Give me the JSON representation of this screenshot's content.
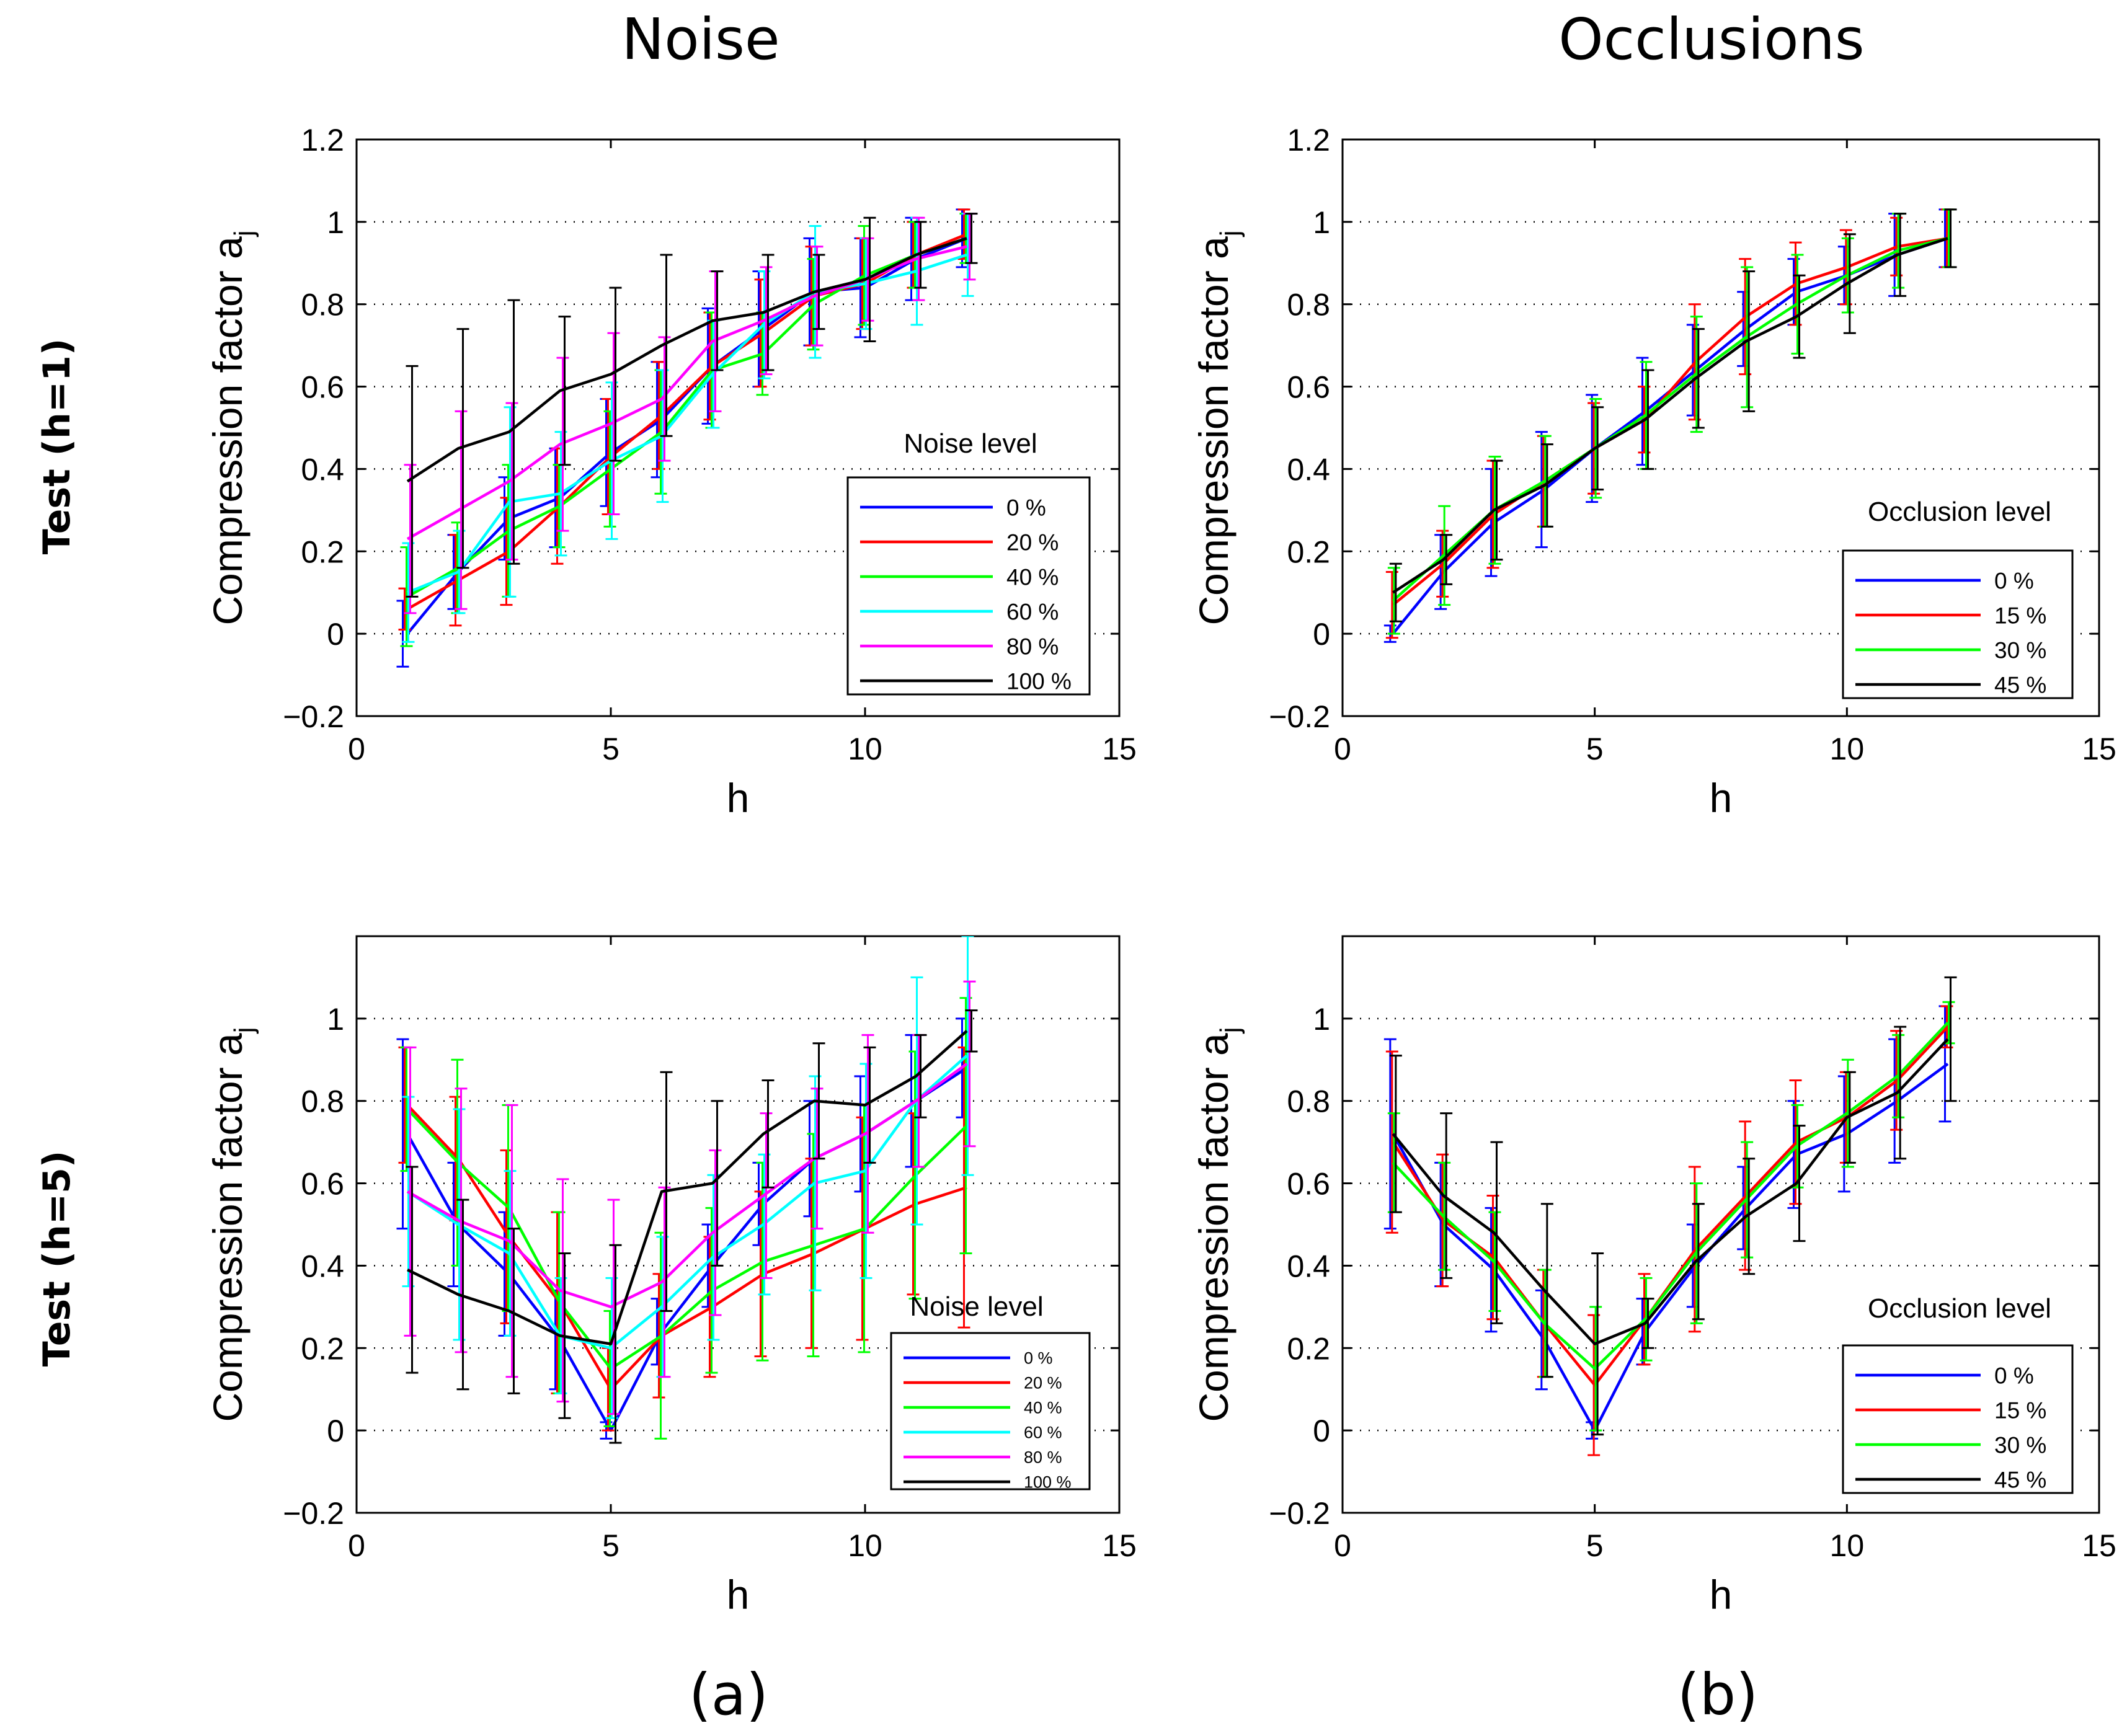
{
  "figure": {
    "column_titles": [
      "Noise",
      "Occlusions"
    ],
    "row_labels": [
      "Test (h=1)",
      "Test (h=5)"
    ],
    "panel_labels": [
      "(a)",
      "(b)"
    ],
    "colors": {
      "blue": "#0000ff",
      "red": "#ff0000",
      "green": "#00ff00",
      "cyan": "#00ffff",
      "magenta": "#ff00ff",
      "black": "#000000",
      "grid": "#000000"
    }
  },
  "chart_data": [
    {
      "id": "p11",
      "type": "line",
      "subtitle": "Noise",
      "row_label": "Test (h=1)",
      "xlabel": "h",
      "ylabel_main": "Compression factor a",
      "ylabel_sub": "j",
      "xlim": [
        0,
        15
      ],
      "ylim": [
        -0.2,
        1.2
      ],
      "xticks": [
        0,
        5,
        10,
        15
      ],
      "yticks": [
        -0.2,
        0,
        0.2,
        0.4,
        0.6,
        0.8,
        1,
        1.2
      ],
      "ytick_labels": [
        "−0.2",
        "0",
        "0.2",
        "0.4",
        "0.6",
        "0.8",
        "1",
        "1.2"
      ],
      "grid": "horizontal dotted",
      "legend": {
        "title": "Noise level",
        "placement": "lower-right"
      },
      "x": [
        1,
        2,
        3,
        4,
        5,
        6,
        7,
        8,
        9,
        10,
        11,
        12
      ],
      "series": [
        {
          "name": "0 %",
          "color": "blue",
          "values": [
            0.0,
            0.15,
            0.28,
            0.33,
            0.44,
            0.52,
            0.65,
            0.74,
            0.83,
            0.84,
            0.91,
            0.96
          ],
          "err": [
            0.08,
            0.09,
            0.1,
            0.12,
            0.13,
            0.14,
            0.14,
            0.14,
            0.13,
            0.12,
            0.1,
            0.07
          ]
        },
        {
          "name": "20 %",
          "color": "red",
          "values": [
            0.06,
            0.13,
            0.2,
            0.31,
            0.43,
            0.53,
            0.65,
            0.73,
            0.82,
            0.85,
            0.92,
            0.97
          ],
          "err": [
            0.05,
            0.11,
            0.13,
            0.14,
            0.14,
            0.13,
            0.13,
            0.13,
            0.12,
            0.11,
            0.08,
            0.06
          ]
        },
        {
          "name": "40 %",
          "color": "green",
          "values": [
            0.09,
            0.16,
            0.25,
            0.31,
            0.4,
            0.49,
            0.64,
            0.68,
            0.8,
            0.87,
            0.92,
            0.96
          ],
          "err": [
            0.12,
            0.11,
            0.16,
            0.1,
            0.14,
            0.15,
            0.14,
            0.1,
            0.11,
            0.12,
            0.08,
            0.06
          ]
        },
        {
          "name": "60 %",
          "color": "cyan",
          "values": [
            0.1,
            0.15,
            0.32,
            0.34,
            0.42,
            0.48,
            0.63,
            0.75,
            0.83,
            0.85,
            0.88,
            0.92
          ],
          "err": [
            0.12,
            0.1,
            0.23,
            0.15,
            0.19,
            0.16,
            0.13,
            0.13,
            0.16,
            0.11,
            0.13,
            0.1
          ]
        },
        {
          "name": "80 %",
          "color": "magenta",
          "values": [
            0.23,
            0.3,
            0.37,
            0.46,
            0.51,
            0.57,
            0.71,
            0.76,
            0.82,
            0.86,
            0.91,
            0.94
          ],
          "err": [
            0.18,
            0.24,
            0.19,
            0.21,
            0.22,
            0.15,
            0.17,
            0.13,
            0.12,
            0.1,
            0.1,
            0.08
          ]
        },
        {
          "name": "100 %",
          "color": "black",
          "values": [
            0.37,
            0.45,
            0.49,
            0.59,
            0.63,
            0.7,
            0.76,
            0.78,
            0.83,
            0.86,
            0.92,
            0.96
          ],
          "err": [
            0.28,
            0.29,
            0.32,
            0.18,
            0.21,
            0.22,
            0.12,
            0.14,
            0.09,
            0.15,
            0.08,
            0.06
          ]
        }
      ]
    },
    {
      "id": "p12",
      "type": "line",
      "subtitle": "Occlusions",
      "row_label": "Test (h=1)",
      "xlabel": "h",
      "ylabel_main": "Compression factor a",
      "ylabel_sub": "j",
      "xlim": [
        0,
        15
      ],
      "ylim": [
        -0.2,
        1.2
      ],
      "xticks": [
        0,
        5,
        10,
        15
      ],
      "yticks": [
        -0.2,
        0,
        0.2,
        0.4,
        0.6,
        0.8,
        1,
        1.2
      ],
      "ytick_labels": [
        "−0.2",
        "0",
        "0.2",
        "0.4",
        "0.6",
        "0.8",
        "1",
        "1.2"
      ],
      "grid": "horizontal dotted",
      "legend": {
        "title": "Occlusion level",
        "placement": "lower-right"
      },
      "x": [
        1,
        2,
        3,
        4,
        5,
        6,
        7,
        8,
        9,
        10,
        11,
        12
      ],
      "series": [
        {
          "name": "0 %",
          "color": "blue",
          "values": [
            0.0,
            0.15,
            0.27,
            0.35,
            0.45,
            0.54,
            0.64,
            0.74,
            0.83,
            0.87,
            0.92,
            0.96
          ],
          "err": [
            0.02,
            0.09,
            0.13,
            0.14,
            0.13,
            0.13,
            0.11,
            0.09,
            0.08,
            0.07,
            0.1,
            0.07
          ]
        },
        {
          "name": "15 %",
          "color": "red",
          "values": [
            0.07,
            0.17,
            0.29,
            0.37,
            0.45,
            0.52,
            0.66,
            0.77,
            0.85,
            0.89,
            0.94,
            0.96
          ],
          "err": [
            0.08,
            0.08,
            0.13,
            0.11,
            0.11,
            0.08,
            0.14,
            0.14,
            0.1,
            0.09,
            0.07,
            0.07
          ]
        },
        {
          "name": "30 %",
          "color": "green",
          "values": [
            0.08,
            0.19,
            0.3,
            0.37,
            0.45,
            0.53,
            0.63,
            0.72,
            0.8,
            0.87,
            0.93,
            0.96
          ],
          "err": [
            0.08,
            0.12,
            0.13,
            0.11,
            0.12,
            0.13,
            0.14,
            0.17,
            0.12,
            0.09,
            0.09,
            0.07
          ]
        },
        {
          "name": "45 %",
          "color": "black",
          "values": [
            0.1,
            0.18,
            0.3,
            0.36,
            0.45,
            0.52,
            0.62,
            0.71,
            0.77,
            0.85,
            0.92,
            0.96
          ],
          "err": [
            0.07,
            0.06,
            0.12,
            0.1,
            0.1,
            0.12,
            0.12,
            0.17,
            0.1,
            0.12,
            0.1,
            0.07
          ]
        }
      ]
    },
    {
      "id": "p21",
      "type": "line",
      "subtitle": "Noise",
      "row_label": "Test (h=5)",
      "xlabel": "h",
      "ylabel_main": "Compression factor a",
      "ylabel_sub": "j",
      "xlim": [
        0,
        15
      ],
      "ylim": [
        -0.2,
        1.2
      ],
      "xticks": [
        0,
        5,
        10,
        15
      ],
      "yticks": [
        -0.2,
        0,
        0.2,
        0.4,
        0.6,
        0.8,
        1
      ],
      "ytick_labels": [
        "−0.2",
        "0",
        "0.2",
        "0.4",
        "0.6",
        "0.8",
        "1"
      ],
      "grid": "horizontal dotted",
      "legend": {
        "title": "Noise level",
        "placement": "lower-right"
      },
      "x": [
        1,
        2,
        3,
        4,
        5,
        6,
        7,
        8,
        9,
        10,
        11,
        12
      ],
      "series": [
        {
          "name": "0 %",
          "color": "blue",
          "values": [
            0.72,
            0.5,
            0.38,
            0.22,
            0.0,
            0.24,
            0.4,
            0.55,
            0.66,
            0.72,
            0.8,
            0.88
          ],
          "err": [
            0.23,
            0.15,
            0.15,
            0.12,
            0.02,
            0.08,
            0.1,
            0.1,
            0.14,
            0.14,
            0.16,
            0.12
          ]
        },
        {
          "name": "20 %",
          "color": "red",
          "values": [
            0.79,
            0.66,
            0.47,
            0.31,
            0.1,
            0.23,
            0.3,
            0.38,
            0.43,
            0.49,
            0.55,
            0.59
          ],
          "err": [
            0.14,
            0.15,
            0.21,
            0.22,
            0.1,
            0.15,
            0.17,
            0.2,
            0.23,
            0.27,
            0.22,
            0.34
          ]
        },
        {
          "name": "40 %",
          "color": "green",
          "values": [
            0.78,
            0.65,
            0.54,
            0.31,
            0.15,
            0.23,
            0.34,
            0.41,
            0.45,
            0.49,
            0.62,
            0.74
          ],
          "err": [
            0.15,
            0.25,
            0.25,
            0.22,
            0.14,
            0.25,
            0.2,
            0.24,
            0.27,
            0.3,
            0.3,
            0.31
          ]
        },
        {
          "name": "60 %",
          "color": "cyan",
          "values": [
            0.58,
            0.5,
            0.43,
            0.23,
            0.2,
            0.3,
            0.42,
            0.5,
            0.6,
            0.63,
            0.8,
            0.91
          ],
          "err": [
            0.23,
            0.28,
            0.2,
            0.14,
            0.17,
            0.17,
            0.2,
            0.17,
            0.26,
            0.26,
            0.3,
            0.29
          ]
        },
        {
          "name": "80 %",
          "color": "magenta",
          "values": [
            0.58,
            0.51,
            0.46,
            0.34,
            0.3,
            0.36,
            0.48,
            0.57,
            0.66,
            0.72,
            0.8,
            0.89
          ],
          "err": [
            0.35,
            0.32,
            0.33,
            0.27,
            0.26,
            0.23,
            0.2,
            0.2,
            0.17,
            0.24,
            0.16,
            0.2
          ]
        },
        {
          "name": "100 %",
          "color": "black",
          "values": [
            0.39,
            0.33,
            0.29,
            0.23,
            0.21,
            0.58,
            0.6,
            0.72,
            0.8,
            0.79,
            0.86,
            0.97
          ],
          "err": [
            0.25,
            0.23,
            0.2,
            0.2,
            0.24,
            0.29,
            0.2,
            0.13,
            0.14,
            0.14,
            0.1,
            0.05
          ]
        }
      ]
    },
    {
      "id": "p22",
      "type": "line",
      "subtitle": "Occlusions",
      "row_label": "Test (h=5)",
      "xlabel": "h",
      "ylabel_main": "Compression factor a",
      "ylabel_sub": "j",
      "xlim": [
        0,
        15
      ],
      "ylim": [
        -0.2,
        1.2
      ],
      "xticks": [
        0,
        5,
        10,
        15
      ],
      "yticks": [
        -0.2,
        0,
        0.2,
        0.4,
        0.6,
        0.8,
        1
      ],
      "ytick_labels": [
        "−0.2",
        "0",
        "0.2",
        "0.4",
        "0.6",
        "0.8",
        "1"
      ],
      "grid": "horizontal dotted",
      "legend": {
        "title": "Occlusion level",
        "placement": "lower-right"
      },
      "x": [
        1,
        2,
        3,
        4,
        5,
        6,
        7,
        8,
        9,
        10,
        11,
        12
      ],
      "series": [
        {
          "name": "0 %",
          "color": "blue",
          "values": [
            0.72,
            0.5,
            0.39,
            0.22,
            0.0,
            0.24,
            0.4,
            0.54,
            0.67,
            0.72,
            0.8,
            0.89
          ],
          "err": [
            0.23,
            0.15,
            0.15,
            0.12,
            0.02,
            0.08,
            0.1,
            0.1,
            0.13,
            0.14,
            0.15,
            0.14
          ]
        },
        {
          "name": "15 %",
          "color": "red",
          "values": [
            0.7,
            0.51,
            0.42,
            0.26,
            0.11,
            0.27,
            0.44,
            0.57,
            0.7,
            0.76,
            0.85,
            0.98
          ],
          "err": [
            0.22,
            0.16,
            0.15,
            0.13,
            0.17,
            0.11,
            0.2,
            0.18,
            0.15,
            0.11,
            0.12,
            0.05
          ]
        },
        {
          "name": "30 %",
          "color": "green",
          "values": [
            0.65,
            0.52,
            0.41,
            0.26,
            0.15,
            0.27,
            0.43,
            0.56,
            0.69,
            0.77,
            0.86,
            0.99
          ],
          "err": [
            0.12,
            0.13,
            0.12,
            0.13,
            0.15,
            0.1,
            0.17,
            0.14,
            0.1,
            0.13,
            0.1,
            0.05
          ]
        },
        {
          "name": "45 %",
          "color": "black",
          "values": [
            0.72,
            0.57,
            0.48,
            0.34,
            0.21,
            0.26,
            0.41,
            0.52,
            0.6,
            0.76,
            0.82,
            0.95
          ],
          "err": [
            0.19,
            0.2,
            0.22,
            0.21,
            0.22,
            0.06,
            0.14,
            0.14,
            0.14,
            0.11,
            0.16,
            0.15
          ]
        }
      ]
    }
  ]
}
